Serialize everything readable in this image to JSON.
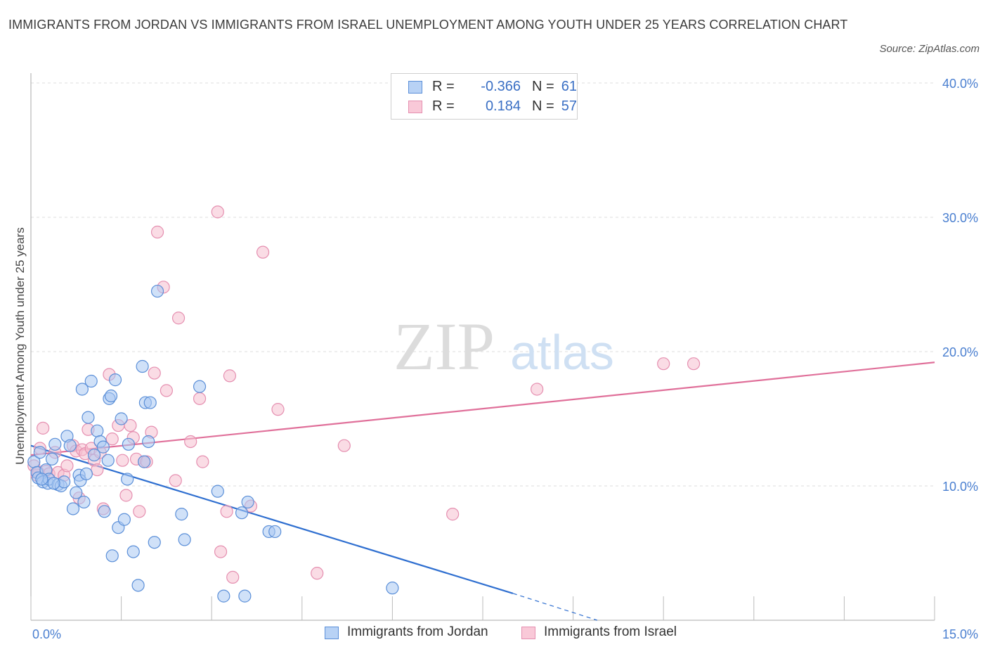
{
  "header": {
    "title": "IMMIGRANTS FROM JORDAN VS IMMIGRANTS FROM ISRAEL UNEMPLOYMENT AMONG YOUTH UNDER 25 YEARS CORRELATION CHART",
    "source": "Source: ZipAtlas.com"
  },
  "watermark": {
    "zip": "ZIP",
    "atlas": "atlas"
  },
  "legend": {
    "rows": [
      {
        "r_label": "R =",
        "r_value": "-0.366",
        "n_label": "N =",
        "n_value": "61"
      },
      {
        "r_label": "R =",
        "r_value": "0.184",
        "n_label": "N =",
        "n_value": "57"
      }
    ]
  },
  "bottom_legend": {
    "series1": "Immigrants from Jordan",
    "series2": "Immigrants from Israel"
  },
  "chart_data": {
    "type": "scatter",
    "title": "IMMIGRANTS FROM JORDAN VS IMMIGRANTS FROM ISRAEL UNEMPLOYMENT AMONG YOUTH UNDER 25 YEARS CORRELATION CHART",
    "xlabel": "",
    "ylabel": "Unemployment Among Youth under 25 years",
    "xlim": [
      0,
      15
    ],
    "ylim": [
      0,
      40
    ],
    "x_tick_labels": [
      {
        "value": 0,
        "label": "0.0%"
      },
      {
        "value": 15,
        "label": "15.0%"
      }
    ],
    "y_tick_labels": [
      {
        "value": 10,
        "label": "10.0%"
      },
      {
        "value": 20,
        "label": "20.0%"
      },
      {
        "value": 30,
        "label": "30.0%"
      },
      {
        "value": 40,
        "label": "40.0%"
      }
    ],
    "legend_position": "top-center",
    "colors": {
      "jordan_fill": "#a9c8f2",
      "jordan_line": "#2f6fd0",
      "israel_fill": "#f6bfd0",
      "israel_line": "#e0709a",
      "tick": "#4a7fd0"
    },
    "series": [
      {
        "name": "Immigrants from Jordan",
        "color": "#2f6fd0",
        "points": [
          [
            0.05,
            11.8
          ],
          [
            0.1,
            11.0
          ],
          [
            0.12,
            10.6
          ],
          [
            0.15,
            12.5
          ],
          [
            0.2,
            10.3
          ],
          [
            0.25,
            11.2
          ],
          [
            0.28,
            10.2
          ],
          [
            0.3,
            10.5
          ],
          [
            0.35,
            12.0
          ],
          [
            0.4,
            13.1
          ],
          [
            0.45,
            10.1
          ],
          [
            0.5,
            10.0
          ],
          [
            0.55,
            10.3
          ],
          [
            0.6,
            13.7
          ],
          [
            0.65,
            13.0
          ],
          [
            0.7,
            8.3
          ],
          [
            0.75,
            9.5
          ],
          [
            0.8,
            10.8
          ],
          [
            0.82,
            10.4
          ],
          [
            0.85,
            17.2
          ],
          [
            0.88,
            8.8
          ],
          [
            0.92,
            10.9
          ],
          [
            0.95,
            15.1
          ],
          [
            1.0,
            17.8
          ],
          [
            1.05,
            12.3
          ],
          [
            1.1,
            14.1
          ],
          [
            1.15,
            13.3
          ],
          [
            1.2,
            12.9
          ],
          [
            1.22,
            8.1
          ],
          [
            1.28,
            11.9
          ],
          [
            1.3,
            16.5
          ],
          [
            1.33,
            16.7
          ],
          [
            1.35,
            4.8
          ],
          [
            1.4,
            17.9
          ],
          [
            1.45,
            6.9
          ],
          [
            1.5,
            15.0
          ],
          [
            1.55,
            7.5
          ],
          [
            1.6,
            10.5
          ],
          [
            1.62,
            13.1
          ],
          [
            1.7,
            5.1
          ],
          [
            1.78,
            2.6
          ],
          [
            1.85,
            18.9
          ],
          [
            1.9,
            16.2
          ],
          [
            1.95,
            13.3
          ],
          [
            1.98,
            16.2
          ],
          [
            2.05,
            5.8
          ],
          [
            2.1,
            24.5
          ],
          [
            2.5,
            7.9
          ],
          [
            2.55,
            6.0
          ],
          [
            2.8,
            17.4
          ],
          [
            3.1,
            9.6
          ],
          [
            3.2,
            1.8
          ],
          [
            3.5,
            8.0
          ],
          [
            3.6,
            8.8
          ],
          [
            3.55,
            1.8
          ],
          [
            3.95,
            6.6
          ],
          [
            4.05,
            6.6
          ],
          [
            6.0,
            2.4
          ],
          [
            0.18,
            10.5
          ],
          [
            0.38,
            10.2
          ],
          [
            1.88,
            11.8
          ]
        ]
      },
      {
        "name": "Immigrants from Israel",
        "color": "#e0709a",
        "points": [
          [
            0.05,
            11.5
          ],
          [
            0.1,
            10.8
          ],
          [
            0.15,
            12.8
          ],
          [
            0.2,
            14.3
          ],
          [
            0.25,
            11.1
          ],
          [
            0.3,
            10.9
          ],
          [
            0.4,
            12.5
          ],
          [
            0.45,
            11.0
          ],
          [
            0.55,
            10.8
          ],
          [
            0.6,
            11.5
          ],
          [
            0.7,
            13.0
          ],
          [
            0.75,
            12.6
          ],
          [
            0.8,
            9.1
          ],
          [
            0.85,
            12.7
          ],
          [
            0.9,
            12.4
          ],
          [
            0.95,
            14.2
          ],
          [
            1.0,
            12.8
          ],
          [
            1.05,
            11.9
          ],
          [
            1.1,
            11.2
          ],
          [
            1.15,
            12.5
          ],
          [
            1.2,
            8.3
          ],
          [
            1.3,
            18.3
          ],
          [
            1.35,
            13.5
          ],
          [
            1.45,
            14.5
          ],
          [
            1.52,
            11.9
          ],
          [
            1.58,
            9.3
          ],
          [
            1.65,
            14.5
          ],
          [
            1.7,
            13.6
          ],
          [
            1.75,
            12.0
          ],
          [
            1.8,
            8.1
          ],
          [
            1.88,
            11.8
          ],
          [
            1.92,
            11.8
          ],
          [
            2.0,
            14.0
          ],
          [
            2.05,
            18.4
          ],
          [
            2.1,
            28.9
          ],
          [
            2.2,
            24.8
          ],
          [
            2.25,
            17.1
          ],
          [
            2.4,
            10.4
          ],
          [
            2.45,
            22.5
          ],
          [
            2.65,
            13.3
          ],
          [
            2.8,
            16.5
          ],
          [
            2.85,
            11.8
          ],
          [
            3.1,
            30.4
          ],
          [
            3.15,
            5.1
          ],
          [
            3.25,
            8.1
          ],
          [
            3.3,
            18.2
          ],
          [
            3.35,
            3.2
          ],
          [
            3.65,
            8.5
          ],
          [
            3.85,
            27.4
          ],
          [
            4.1,
            15.7
          ],
          [
            4.75,
            3.5
          ],
          [
            5.2,
            13.0
          ],
          [
            7.0,
            7.9
          ],
          [
            8.4,
            17.2
          ],
          [
            10.5,
            19.1
          ],
          [
            11.0,
            19.1
          ],
          [
            0.12,
            11.0
          ]
        ]
      }
    ],
    "trend_lines": [
      {
        "series": "Immigrants from Jordan",
        "x_start": 0,
        "y_start": 13.0,
        "x_end": 8.0,
        "y_end": 2.0,
        "x_dash_end": 9.4,
        "y_dash_end": 0.0
      },
      {
        "series": "Immigrants from Israel",
        "x_start": 0,
        "y_start": 12.3,
        "x_end": 15.0,
        "y_end": 19.2
      }
    ]
  }
}
